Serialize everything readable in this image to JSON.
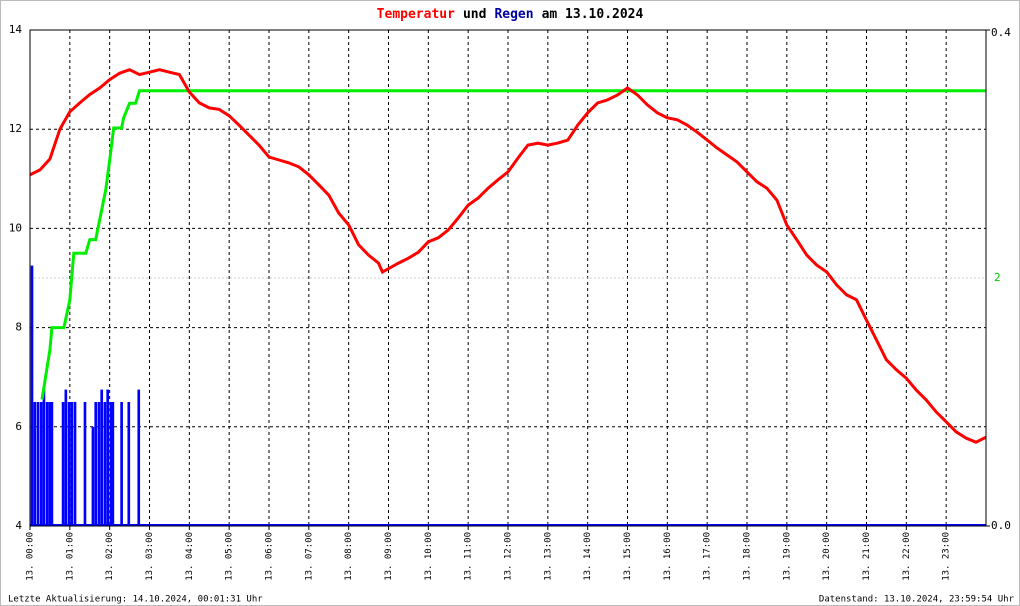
{
  "chart_data": {
    "type": "line",
    "title_parts": [
      {
        "text": "Temperatur",
        "color": "#ff0000"
      },
      {
        "text": "und",
        "color": "#000000"
      },
      {
        "text": "Regen",
        "color": "#0000a0"
      },
      {
        "text": "am 13.10.2024",
        "color": "#000000"
      }
    ],
    "footer_left": "Letzte Aktualisierung: 14.10.2024, 00:01:31 Uhr",
    "footer_right": "Datenstand: 13.10.2024, 23:59:54 Uhr",
    "grid": true,
    "xlim": [
      0,
      24
    ],
    "xticks": [
      {
        "value": 0,
        "label": "13. 00:00"
      },
      {
        "value": 1,
        "label": "13. 01:00"
      },
      {
        "value": 2,
        "label": "13. 02:00"
      },
      {
        "value": 3,
        "label": "13. 03:00"
      },
      {
        "value": 4,
        "label": "13. 04:00"
      },
      {
        "value": 5,
        "label": "13. 05:00"
      },
      {
        "value": 6,
        "label": "13. 06:00"
      },
      {
        "value": 7,
        "label": "13. 07:00"
      },
      {
        "value": 8,
        "label": "13. 08:00"
      },
      {
        "value": 9,
        "label": "13. 09:00"
      },
      {
        "value": 10,
        "label": "13. 10:00"
      },
      {
        "value": 11,
        "label": "13. 11:00"
      },
      {
        "value": 12,
        "label": "13. 12:00"
      },
      {
        "value": 13,
        "label": "13. 13:00"
      },
      {
        "value": 14,
        "label": "13. 14:00"
      },
      {
        "value": 15,
        "label": "13. 15:00"
      },
      {
        "value": 16,
        "label": "13. 16:00"
      },
      {
        "value": 17,
        "label": "13. 17:00"
      },
      {
        "value": 18,
        "label": "13. 18:00"
      },
      {
        "value": 19,
        "label": "13. 19:00"
      },
      {
        "value": 20,
        "label": "13. 20:00"
      },
      {
        "value": 21,
        "label": "13. 21:00"
      },
      {
        "value": 22,
        "label": "13. 22:00"
      },
      {
        "value": 23,
        "label": "13. 23:00"
      }
    ],
    "ylim": [
      4,
      14
    ],
    "yticks": [
      4,
      6,
      8,
      10,
      12,
      14
    ],
    "y2lim": [
      0,
      0.4
    ],
    "y2ticks": [
      {
        "value": 0,
        "label": "0.0"
      },
      {
        "value": 0.4,
        "label": "0.4"
      }
    ],
    "y3lim": [
      0,
      4
    ],
    "y3ticks": [
      2
    ],
    "y3color": "#00cc00",
    "series": [
      {
        "type": "line",
        "color": "#ff0000",
        "x": [
          0,
          0.25,
          0.5,
          0.75,
          1,
          1.25,
          1.5,
          1.75,
          2,
          2.25,
          2.5,
          2.75,
          3,
          3.25,
          3.5,
          3.75,
          4,
          4.25,
          4.5,
          4.75,
          5,
          5.25,
          5.5,
          5.75,
          6,
          6.25,
          6.5,
          6.75,
          7,
          7.25,
          7.5,
          7.75,
          8,
          8.25,
          8.5,
          8.75,
          8.85,
          9.25,
          9.5,
          9.75,
          10,
          10.25,
          10.5,
          10.75,
          11,
          11.25,
          11.5,
          11.75,
          12,
          12.25,
          12.5,
          12.75,
          13,
          13.25,
          13.5,
          13.75,
          14,
          14.25,
          14.5,
          14.75,
          15,
          15.25,
          15.5,
          15.75,
          16,
          16.25,
          16.5,
          16.75,
          17,
          17.25,
          17.5,
          17.75,
          18,
          18.25,
          18.5,
          18.75,
          19,
          19.25,
          19.5,
          19.75,
          20,
          20.25,
          20.5,
          20.75,
          21,
          21.25,
          21.5,
          21.75,
          22,
          22.25,
          22.5,
          22.75,
          23,
          23.25,
          23.5,
          23.75,
          24
        ],
        "values": [
          11.08,
          11.18,
          11.4,
          12.0,
          12.35,
          12.53,
          12.7,
          12.83,
          13.0,
          13.13,
          13.2,
          13.1,
          13.15,
          13.2,
          13.15,
          13.1,
          12.75,
          12.53,
          12.43,
          12.4,
          12.27,
          12.08,
          11.88,
          11.68,
          11.44,
          11.38,
          11.32,
          11.24,
          11.08,
          10.88,
          10.67,
          10.31,
          10.07,
          9.67,
          9.46,
          9.3,
          9.12,
          9.3,
          9.4,
          9.52,
          9.73,
          9.81,
          9.97,
          10.21,
          10.47,
          10.61,
          10.81,
          10.98,
          11.14,
          11.42,
          11.68,
          11.72,
          11.68,
          11.72,
          11.78,
          12.08,
          12.33,
          12.53,
          12.59,
          12.69,
          12.83,
          12.69,
          12.49,
          12.33,
          12.23,
          12.19,
          12.08,
          11.94,
          11.78,
          11.62,
          11.48,
          11.34,
          11.14,
          10.94,
          10.81,
          10.57,
          10.07,
          9.77,
          9.46,
          9.26,
          9.12,
          8.86,
          8.66,
          8.56,
          8.15,
          7.75,
          7.35,
          7.15,
          6.98,
          6.74,
          6.54,
          6.3,
          6.1,
          5.9,
          5.77,
          5.69,
          5.79
        ]
      },
      {
        "type": "bar",
        "axis": "y2",
        "color": "#0000ff",
        "x": [
          0.05,
          0.12,
          0.2,
          0.28,
          0.35,
          0.43,
          0.5,
          0.55,
          0.83,
          0.9,
          0.98,
          1.05,
          1.13,
          1.38,
          1.58,
          1.65,
          1.73,
          1.8,
          1.88,
          1.95,
          2.03,
          2.08,
          2.3,
          2.48,
          2.73
        ],
        "values": [
          0.21,
          0.1,
          0.1,
          0.1,
          0.11,
          0.1,
          0.1,
          0.1,
          0.1,
          0.11,
          0.1,
          0.1,
          0.1,
          0.1,
          0.08,
          0.1,
          0.1,
          0.11,
          0.1,
          0.11,
          0.1,
          0.1,
          0.1,
          0.1,
          0.11
        ]
      },
      {
        "type": "step",
        "axis": "y3",
        "color": "#00ee00",
        "x": [
          0.3,
          0.5,
          0.55,
          0.85,
          1,
          1.1,
          1.4,
          1.5,
          1.65,
          1.9,
          2,
          2.1,
          2.3,
          2.35,
          2.5,
          2.65,
          2.75,
          24
        ],
        "values": [
          1.02,
          1.42,
          1.6,
          1.6,
          1.82,
          2.2,
          2.2,
          2.31,
          2.31,
          2.71,
          2.95,
          3.21,
          3.21,
          3.29,
          3.41,
          3.41,
          3.51,
          3.51
        ]
      }
    ]
  }
}
